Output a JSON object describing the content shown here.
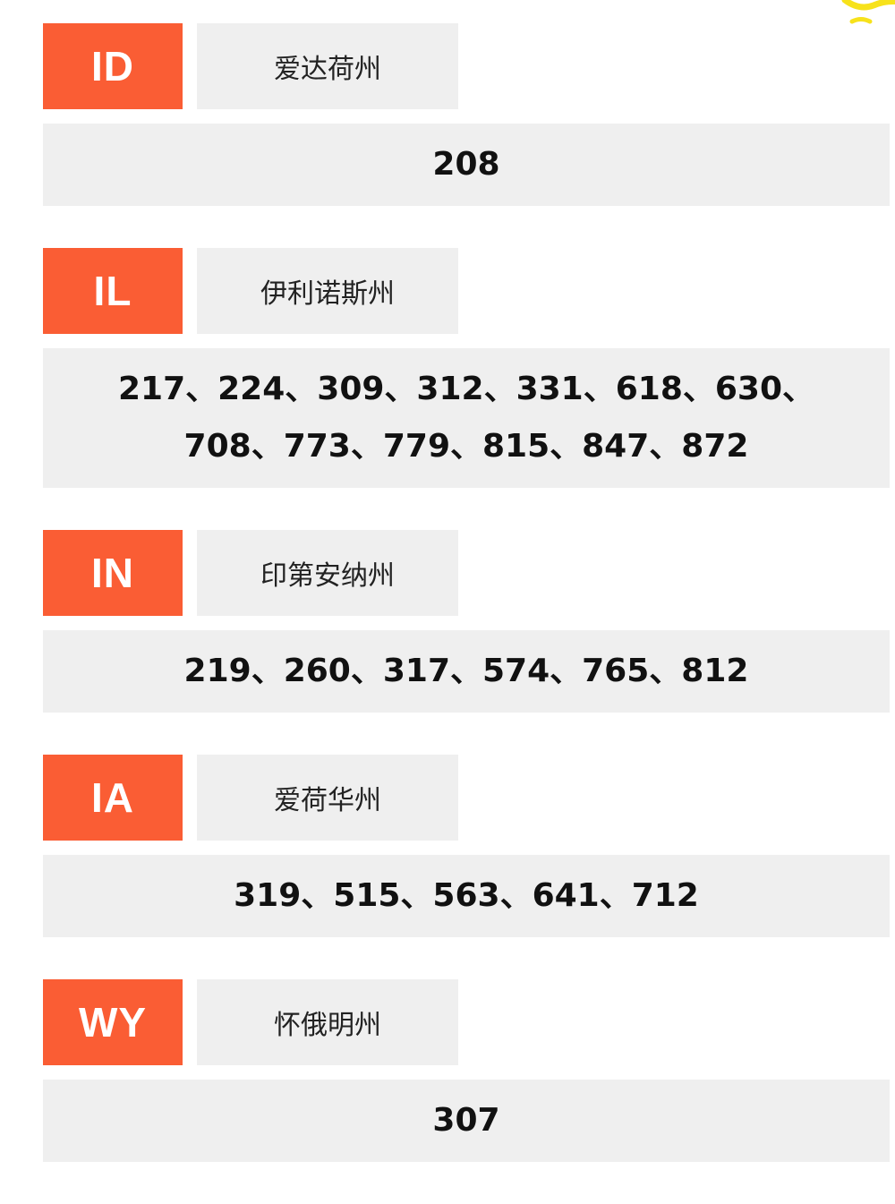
{
  "accent_color": "#fa5d34",
  "decoration_color": "#f7e21b",
  "states": [
    {
      "code": "ID",
      "name": "爱达荷州",
      "area_codes": "208"
    },
    {
      "code": "IL",
      "name": "伊利诺斯州",
      "area_codes": "217、224、309、312、331、618、630、708、773、779、815、847、872"
    },
    {
      "code": "IN",
      "name": "印第安纳州",
      "area_codes": "219、260、317、574、765、812"
    },
    {
      "code": "IA",
      "name": "爱荷华州",
      "area_codes": "319、515、563、641、712"
    },
    {
      "code": "WY",
      "name": "怀俄明州",
      "area_codes": "307"
    }
  ]
}
